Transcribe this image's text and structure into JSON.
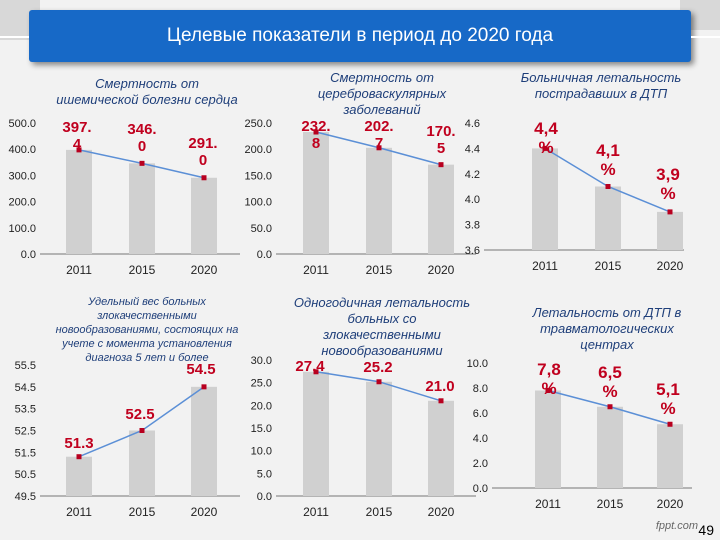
{
  "page": {
    "title": "Целевые показатели в период до 2020 года",
    "page_number": "49",
    "watermark": "fppt.com"
  },
  "colors": {
    "title_bar": "#1769c7",
    "bar": "#d0d0d0",
    "line": "#5b8fd6",
    "marker": "#b8001f",
    "value_label": "#c0001e",
    "chart_title": "#1f3f7a"
  },
  "chart_data": [
    {
      "type": "bar",
      "title_lines": [
        "Смертность от",
        "ишемической болезни сердца"
      ],
      "categories": [
        "2011",
        "2015",
        "2020"
      ],
      "values": [
        397.4,
        346.0,
        291.0
      ],
      "value_labels": [
        [
          "397.",
          "4"
        ],
        [
          "346.",
          "0"
        ],
        [
          "291.",
          "0"
        ]
      ],
      "ylim": [
        0,
        500
      ],
      "y_ticks": [
        "0.0",
        "100.0",
        "200.0",
        "300.0",
        "400.0",
        "500.0"
      ],
      "overlay_line": true,
      "grid": false
    },
    {
      "type": "bar",
      "title_lines": [
        "Смертность от",
        "цереброваскулярных",
        "заболеваний"
      ],
      "categories": [
        "2011",
        "2015",
        "2020"
      ],
      "values": [
        232.8,
        202.7,
        170.5
      ],
      "value_labels": [
        [
          "232.",
          "8"
        ],
        [
          "202.",
          "7"
        ],
        [
          "170.",
          "5"
        ]
      ],
      "ylim": [
        0,
        250
      ],
      "y_ticks": [
        "0.0",
        "50.0",
        "100.0",
        "150.0",
        "200.0",
        "250.0"
      ],
      "overlay_line": true,
      "grid": false
    },
    {
      "type": "bar",
      "title_lines": [
        "Больничная летальность",
        "пострадавших в ДТП"
      ],
      "categories": [
        "2011",
        "2015",
        "2020"
      ],
      "values": [
        4.4,
        4.1,
        3.9
      ],
      "value_labels": [
        [
          "4,4",
          "%"
        ],
        [
          "4,1",
          "%"
        ],
        [
          "3,9",
          "%"
        ]
      ],
      "ylim": [
        3.6,
        4.6
      ],
      "y_ticks": [
        "3.6",
        "3.8",
        "4.0",
        "4.2",
        "4.4",
        "4.6"
      ],
      "overlay_line": true,
      "grid": false
    },
    {
      "type": "bar",
      "title_lines": [
        "Удельный вес больных",
        "злокачественными",
        "новообразованиями, состоящих на",
        "учете с момента установления",
        "диагноза 5 лет и более"
      ],
      "categories": [
        "2011",
        "2015",
        "2020"
      ],
      "values": [
        51.3,
        52.5,
        54.5
      ],
      "value_labels": [
        [
          "51.3"
        ],
        [
          "52.5"
        ],
        [
          "54.5"
        ]
      ],
      "ylim": [
        49.5,
        55.5
      ],
      "y_ticks": [
        "49.5",
        "50.5",
        "51.5",
        "52.5",
        "53.5",
        "54.5",
        "55.5"
      ],
      "overlay_line": true,
      "grid": false
    },
    {
      "type": "bar",
      "title_lines": [
        "Одногодичная летальность",
        "больных со",
        "злокачественными",
        "новообразованиями"
      ],
      "categories": [
        "2011",
        "2015",
        "2020"
      ],
      "values": [
        27.4,
        25.2,
        21.0
      ],
      "value_labels": [
        [
          "27.4"
        ],
        [
          "25.2"
        ],
        [
          "21.0"
        ]
      ],
      "ylim": [
        0,
        30
      ],
      "y_ticks": [
        "0.0",
        "5.0",
        "10.0",
        "15.0",
        "20.0",
        "25.0",
        "30.0"
      ],
      "overlay_line": true,
      "grid": false
    },
    {
      "type": "bar",
      "title_lines": [
        "Летальность от ДТП в",
        "травматологических",
        "центрах"
      ],
      "categories": [
        "2011",
        "2015",
        "2020"
      ],
      "values": [
        7.8,
        6.5,
        5.1
      ],
      "value_labels": [
        [
          "7,8",
          "%"
        ],
        [
          "6,5",
          "%"
        ],
        [
          "5,1",
          "%"
        ]
      ],
      "ylim": [
        0,
        10
      ],
      "y_ticks": [
        "0.0",
        "2.0",
        "4.0",
        "6.0",
        "8.0",
        "10.0"
      ],
      "overlay_line": true,
      "grid": false
    }
  ]
}
